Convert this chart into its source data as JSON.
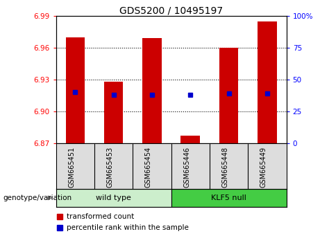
{
  "title": "GDS5200 / 10495197",
  "samples": [
    "GSM665451",
    "GSM665453",
    "GSM665454",
    "GSM665446",
    "GSM665448",
    "GSM665449"
  ],
  "transformed_counts": [
    6.97,
    6.928,
    6.969,
    6.877,
    6.96,
    6.985
  ],
  "percentile_ranks": [
    6.918,
    6.916,
    6.916,
    6.916,
    6.917,
    6.917
  ],
  "ylim_left": [
    6.87,
    6.99
  ],
  "yticks_left": [
    6.87,
    6.9,
    6.93,
    6.96,
    6.99
  ],
  "yticks_right": [
    0,
    25,
    50,
    75,
    100
  ],
  "bar_color": "#cc0000",
  "dot_color": "#0000cc",
  "bar_base": 6.87,
  "group_wt_color": "#cceecc",
  "group_klf_color": "#44cc44",
  "group_label_wt": "wild type",
  "group_label_klf": "KLF5 null",
  "grid_yticks": [
    6.9,
    6.93,
    6.96
  ],
  "legend_items": [
    "transformed count",
    "percentile rank within the sample"
  ],
  "legend_colors": [
    "#cc0000",
    "#0000cc"
  ],
  "geno_label": "genotype/variation"
}
